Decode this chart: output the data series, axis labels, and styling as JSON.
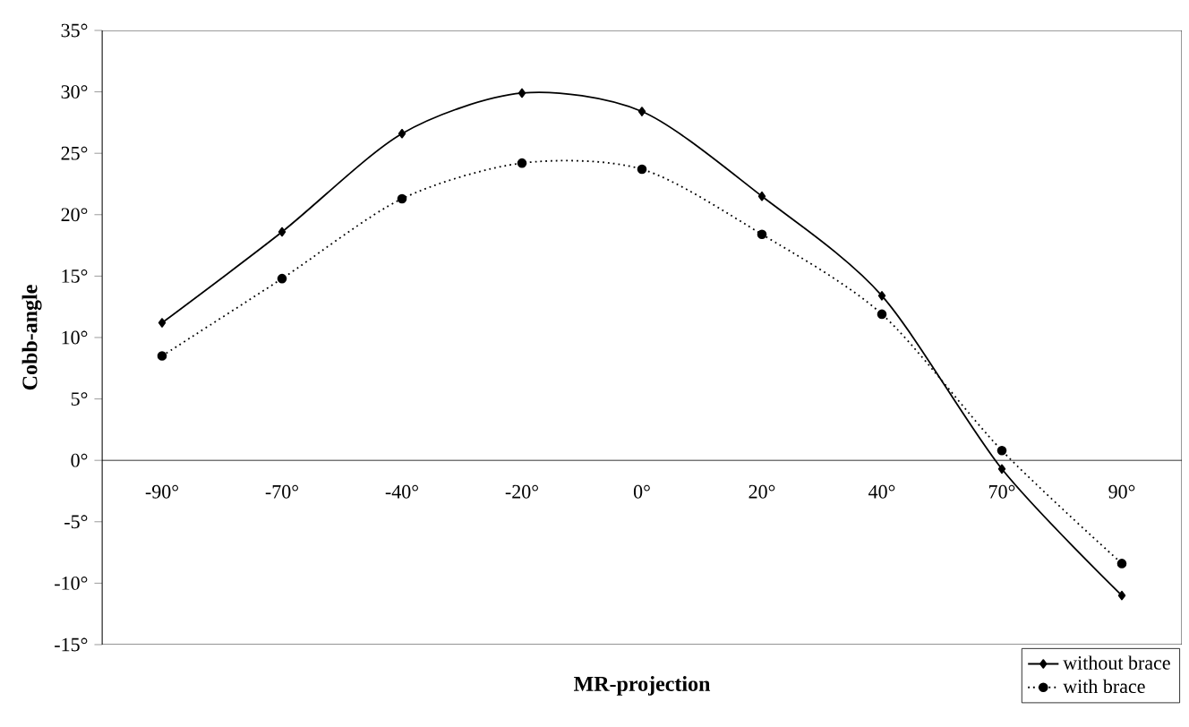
{
  "chart_data": {
    "type": "line",
    "xlabel": "MR-projection",
    "ylabel": "Cobb-angle",
    "categories": [
      "-90°",
      "-70°",
      "-40°",
      "-20°",
      "0°",
      "20°",
      "40°",
      "70°",
      "90°"
    ],
    "series": [
      {
        "name": "without brace",
        "color": "#000000",
        "marker": "diamond",
        "line_style": "solid",
        "values": [
          11.2,
          18.6,
          26.6,
          29.9,
          28.4,
          21.5,
          13.4,
          -0.7,
          -11.0
        ]
      },
      {
        "name": "with brace",
        "color": "#000000",
        "marker": "circle",
        "line_style": "dotted",
        "values": [
          8.5,
          14.8,
          21.3,
          24.2,
          23.7,
          18.4,
          11.9,
          0.8,
          -8.4
        ]
      }
    ],
    "ylim": [
      -15,
      35
    ],
    "yticks": [
      {
        "value": -15,
        "label": "-15°"
      },
      {
        "value": -10,
        "label": "-10°"
      },
      {
        "value": -5,
        "label": "-5°"
      },
      {
        "value": 0,
        "label": "0°"
      },
      {
        "value": 5,
        "label": "5°"
      },
      {
        "value": 10,
        "label": "10°"
      },
      {
        "value": 15,
        "label": "15°"
      },
      {
        "value": 20,
        "label": "20°"
      },
      {
        "value": 25,
        "label": "25°"
      },
      {
        "value": 30,
        "label": "30°"
      },
      {
        "value": 35,
        "label": "35°"
      }
    ],
    "legend": "bottom right",
    "grid": false
  }
}
